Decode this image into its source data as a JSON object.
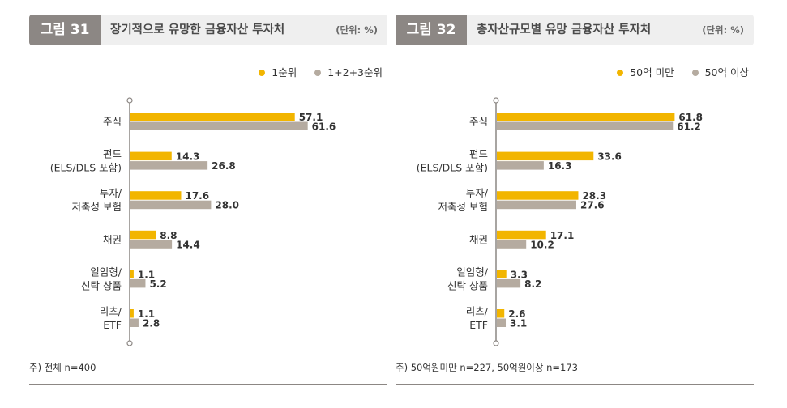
{
  "colors": {
    "primary": "#F2B500",
    "secondary": "#B5ABA0",
    "header_dark": "#8C8784"
  },
  "figures": [
    {
      "number": "그림 31",
      "title": "장기적으로 유망한 금융자산 투자처",
      "unit": "(단위: %)",
      "note": "주) 전체 n=400"
    },
    {
      "number": "그림 32",
      "title": "총자산규모별 유망 금융자산 투자처",
      "unit": "(단위: %)",
      "note": "주) 50억원미만 n=227,  50억원이상 n=173"
    }
  ],
  "chart_data": [
    {
      "type": "bar",
      "orientation": "horizontal",
      "categories": [
        [
          "주식"
        ],
        [
          "펀드",
          "(ELS/DLS 포함)"
        ],
        [
          "투자/",
          "저축성 보험"
        ],
        [
          "채권"
        ],
        [
          "일임형/",
          "신탁 상품"
        ],
        [
          "리츠/",
          "ETF"
        ]
      ],
      "series": [
        {
          "name": "1순위",
          "values": [
            57.1,
            14.3,
            17.6,
            8.8,
            1.1,
            1.1
          ]
        },
        {
          "name": "1+2+3순위",
          "values": [
            61.6,
            26.8,
            28.0,
            14.4,
            5.2,
            2.8
          ]
        }
      ],
      "xlim": [
        0,
        70
      ],
      "legend": "top-right"
    },
    {
      "type": "bar",
      "orientation": "horizontal",
      "categories": [
        [
          "주식"
        ],
        [
          "펀드",
          "(ELS/DLS 포함)"
        ],
        [
          "투자/",
          "저축성 보험"
        ],
        [
          "채권"
        ],
        [
          "일임형/",
          "신탁 상품"
        ],
        [
          "리츠/",
          "ETF"
        ]
      ],
      "series": [
        {
          "name": "50억 미만",
          "values": [
            61.8,
            33.6,
            28.3,
            17.1,
            3.3,
            2.6
          ]
        },
        {
          "name": "50억 이상",
          "values": [
            61.2,
            16.3,
            27.6,
            10.2,
            8.2,
            3.1
          ]
        }
      ],
      "xlim": [
        0,
        70
      ],
      "legend": "top-right"
    }
  ]
}
